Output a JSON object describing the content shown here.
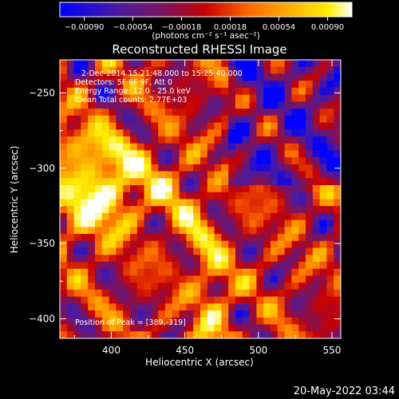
{
  "colorbar": {
    "ticks": [
      "−0.00090",
      "−0.00054",
      "−0.00018",
      "0.00018",
      "0.00054",
      "0.00090"
    ],
    "units": "(photons cm⁻² s⁻¹ asec⁻²)"
  },
  "chart_data": {
    "type": "heatmap",
    "title": "Reconstructed RHESSI Image",
    "xlabel": "Heliocentric X (arcsec)",
    "ylabel": "Heliocentric Y (arcsec)",
    "xlim": [
      365,
      556
    ],
    "ylim": [
      -413,
      -228
    ],
    "x_ticks": [
      400,
      450,
      500,
      550
    ],
    "y_ticks": [
      -250,
      -300,
      -350,
      -400
    ],
    "x_tick_labels": [
      "400",
      "450",
      "500",
      "550"
    ],
    "y_tick_labels": [
      "−250",
      "−300",
      "−350",
      "−400"
    ],
    "value_range": [
      -0.0009,
      0.0009
    ],
    "colormap": [
      "#0000ff",
      "#4b1ba0",
      "#7a1460",
      "#c80000",
      "#ff6a00",
      "#ffb400",
      "#fff000",
      "#ffffff"
    ],
    "peak": [
      389,
      -319
    ],
    "annotations": [
      "2-Dec-2014 15:21:48.000 to 15:25:40.000",
      "Detectors: 5F 6F 9F, Att 0",
      "Energy Range: 12.0 - 25.0 keV",
      "Clean     Total counts: 2.77E+03",
      "Position of Peak = [389,-319]"
    ]
  },
  "footer": {
    "timestamp": "20-May-2022 03:44"
  }
}
